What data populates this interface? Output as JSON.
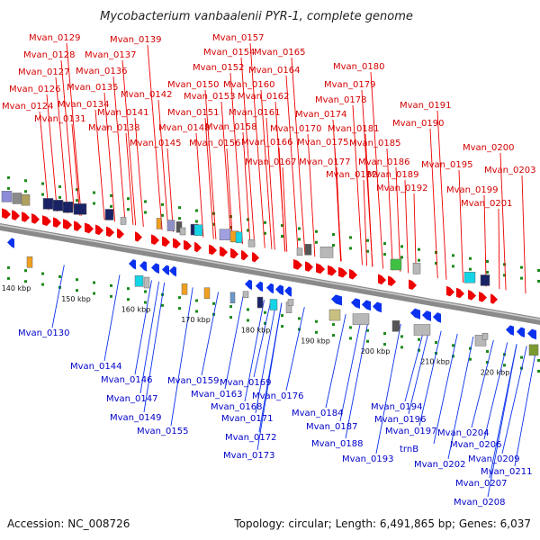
{
  "title": "Mycobacterium vanbaalenii PYR-1, complete genome",
  "footer": {
    "accession": "Accession: NC_008726",
    "stats": "Topology: circular; Length: 6,491,865 bp; Genes: 6,037"
  },
  "colors": {
    "forward": "#ee0000",
    "reverse": "#0a32ee",
    "forward_label": "#d40000",
    "reverse_label": "#0000c8",
    "backbone": "#8a8a8a",
    "tick": "#1a8a1a",
    "rna": "#8c8cd8",
    "navy": "#1a2266",
    "cyan": "#14d4e6",
    "gray_box": "#b8b8b8",
    "dark_gray": "#555555",
    "olive": "#c8c080",
    "orange": "#f0a020",
    "green": "#40c040"
  },
  "scale": {
    "unit": "kbp",
    "ticks": [
      {
        "label": "140 kbp",
        "pos": 140
      },
      {
        "label": "150 kbp",
        "pos": 150
      },
      {
        "label": "160 kbp",
        "pos": 160
      },
      {
        "label": "170 kbp",
        "pos": 170
      },
      {
        "label": "180 kbp",
        "pos": 180
      },
      {
        "label": "190 kbp",
        "pos": 190
      },
      {
        "label": "200 kbp",
        "pos": 200
      },
      {
        "label": "210 kbp",
        "pos": 210
      },
      {
        "label": "220 kbp",
        "pos": 220
      }
    ]
  },
  "forward_genes": [
    "Mvan_0124",
    "Mvan_0126",
    "Mvan_0127",
    "Mvan_0128",
    "Mvan_0129",
    "Mvan_0131",
    "Mvan_0134",
    "Mvan_0135",
    "Mvan_0136",
    "Mvan_0137",
    "Mvan_0138",
    "Mvan_0139",
    "Mvan_0141",
    "Mvan_0142",
    "Mvan_0145",
    "Mvan_0148",
    "Mvan_0150",
    "Mvan_0151",
    "Mvan_0152",
    "Mvan_0153",
    "Mvan_0154",
    "Mvan_0156",
    "Mvan_0157",
    "Mvan_0158",
    "Mvan_0160",
    "Mvan_0161",
    "Mvan_0162",
    "Mvan_0164",
    "Mvan_0165",
    "Mvan_0166",
    "Mvan_0167",
    "Mvan_0170",
    "Mvan_0174",
    "Mvan_0175",
    "Mvan_0177",
    "Mvan_0178",
    "Mvan_0179",
    "Mvan_0180",
    "Mvan_0181",
    "Mvan_0182",
    "Mvan_0185",
    "Mvan_0186",
    "Mvan_0189",
    "Mvan_0190",
    "Mvan_0191",
    "Mvan_0192",
    "Mvan_0195",
    "Mvan_0199",
    "Mvan_0200",
    "Mvan_0201",
    "Mvan_0203"
  ],
  "reverse_genes": [
    "Mvan_0130",
    "Mvan_0144",
    "Mvan_0146",
    "Mvan_0147",
    "Mvan_0149",
    "Mvan_0155",
    "Mvan_0159",
    "Mvan_0163",
    "Mvan_0168",
    "Mvan_0169",
    "Mvan_0171",
    "Mvan_0172",
    "Mvan_0173",
    "Mvan_0176",
    "Mvan_0184",
    "Mvan_0187",
    "Mvan_0188",
    "Mvan_0193",
    "Mvan_0194",
    "Mvan_0196",
    "Mvan_0197",
    "trnB",
    "Mvan_0202",
    "Mvan_0204",
    "Mvan_0206",
    "Mvan_0207",
    "Mvan_0208",
    "Mvan_0209",
    "Mvan_0211"
  ]
}
